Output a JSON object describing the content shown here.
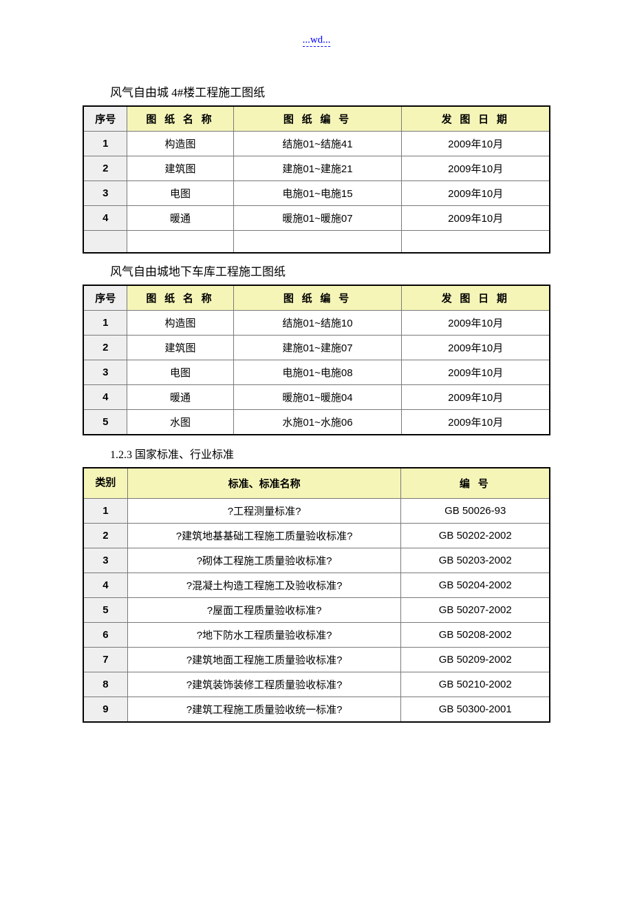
{
  "header_link": "...wd...",
  "table1": {
    "caption": "风气自由城 4#楼工程施工图纸",
    "columns": [
      "序号",
      "图 纸 名 称",
      "图 纸 编 号",
      "发 图 日 期"
    ],
    "rows": [
      [
        "1",
        "构造图",
        "结施01~结施41",
        "2009年10月"
      ],
      [
        "2",
        "建筑图",
        "建施01~建施21",
        "2009年10月"
      ],
      [
        "3",
        "电图",
        "电施01~电施15",
        "2009年10月"
      ],
      [
        "4",
        "暖通",
        "暖施01~暖施07",
        "2009年10月"
      ],
      [
        "",
        "",
        "",
        ""
      ]
    ]
  },
  "table2": {
    "caption": "风气自由城地下车库工程施工图纸",
    "columns": [
      "序号",
      "图 纸 名 称",
      "图 纸 编 号",
      "发 图 日 期"
    ],
    "rows": [
      [
        "1",
        "构造图",
        "结施01~结施10",
        "2009年10月"
      ],
      [
        "2",
        "建筑图",
        "建施01~建施07",
        "2009年10月"
      ],
      [
        "3",
        "电图",
        "电施01~电施08",
        "2009年10月"
      ],
      [
        "4",
        "暖通",
        "暖施01~暖施04",
        "2009年10月"
      ],
      [
        "5",
        "水图",
        "水施01~水施06",
        "2009年10月"
      ]
    ]
  },
  "section_heading": "1.2.3 国家标准、行业标准",
  "table3": {
    "columns": [
      "类别",
      "标准、标准名称",
      "编  号"
    ],
    "rows": [
      [
        "1",
        "?工程测量标准?",
        "GB 50026-93"
      ],
      [
        "2",
        "?建筑地基基础工程施工质量验收标准?",
        "GB 50202-2002"
      ],
      [
        "3",
        "?砌体工程施工质量验收标准?",
        "GB 50203-2002"
      ],
      [
        "4",
        "?混凝土构造工程施工及验收标准?",
        "GB 50204-2002"
      ],
      [
        "5",
        "?屋面工程质量验收标准?",
        "GB 50207-2002"
      ],
      [
        "6",
        "?地下防水工程质量验收标准?",
        "GB 50208-2002"
      ],
      [
        "7",
        "?建筑地面工程施工质量验收标准?",
        "GB 50209-2002"
      ],
      [
        "8",
        "?建筑装饰装修工程质量验收标准?",
        "GB 50210-2002"
      ],
      [
        "9",
        "?建筑工程施工质量验收统一标准?",
        "GB 50300-2001"
      ]
    ]
  },
  "colors": {
    "header_bg": "#f5f5b8",
    "seq_bg": "#efefef",
    "border": "#777777",
    "outer_border": "#000000",
    "link": "#0000ff"
  }
}
